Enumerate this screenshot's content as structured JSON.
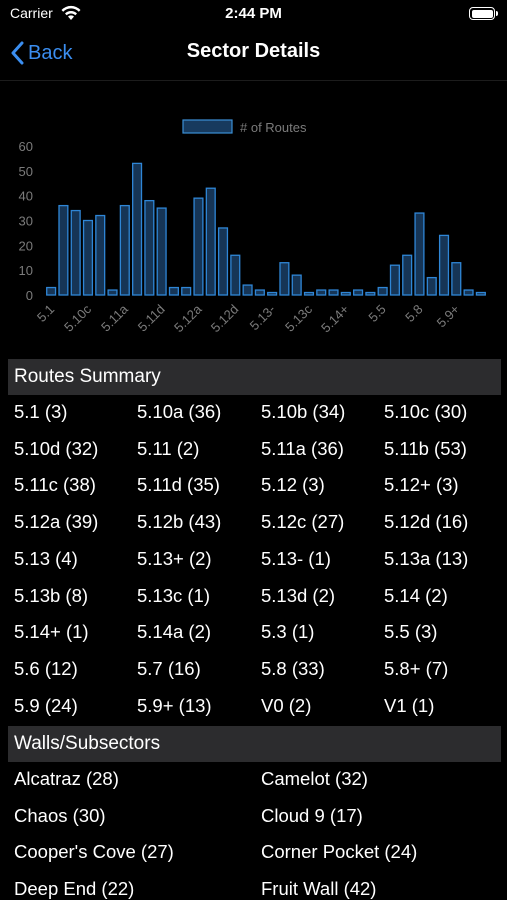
{
  "status_bar": {
    "carrier": "Carrier",
    "time": "2:44 PM"
  },
  "nav": {
    "back_label": "Back",
    "title": "Sector Details"
  },
  "chart_data": {
    "type": "bar",
    "legend": "# of Routes",
    "ylim": [
      0,
      60
    ],
    "yticks": [
      0,
      10,
      20,
      30,
      40,
      50,
      60
    ],
    "categories": [
      "5.1",
      "5.10a",
      "5.10b",
      "5.10c",
      "5.10d",
      "5.11",
      "5.11a",
      "5.11b",
      "5.11c",
      "5.11d",
      "5.12",
      "5.12+",
      "5.12a",
      "5.12b",
      "5.12c",
      "5.12d",
      "5.13",
      "5.13+",
      "5.13-",
      "5.13a",
      "5.13b",
      "5.13c",
      "5.13d",
      "5.14",
      "5.14+",
      "5.14a",
      "5.3",
      "5.5",
      "5.6",
      "5.7",
      "5.8",
      "5.8+",
      "5.9",
      "5.9+",
      "V0",
      "V1"
    ],
    "values": [
      3,
      36,
      34,
      30,
      32,
      2,
      36,
      53,
      38,
      35,
      3,
      3,
      39,
      43,
      27,
      16,
      4,
      2,
      1,
      13,
      8,
      1,
      2,
      2,
      1,
      2,
      1,
      3,
      12,
      16,
      33,
      7,
      24,
      13,
      2,
      1
    ],
    "tick_labels": [
      "5.1",
      "5.10c",
      "5.11a",
      "5.11d",
      "5.12a",
      "5.12d",
      "5.13-",
      "5.13c",
      "5.14+",
      "5.5",
      "5.8",
      "5.9+"
    ],
    "tick_indices": [
      0,
      3,
      6,
      9,
      12,
      15,
      18,
      21,
      24,
      27,
      30,
      33
    ],
    "grid": false
  },
  "routes_summary": {
    "header": "Routes Summary",
    "items": [
      "5.1 (3)",
      "5.10a (36)",
      "5.10b (34)",
      "5.10c (30)",
      "5.10d (32)",
      "5.11 (2)",
      "5.11a (36)",
      "5.11b (53)",
      "5.11c (38)",
      "5.11d (35)",
      "5.12 (3)",
      "5.12+ (3)",
      "5.12a (39)",
      "5.12b (43)",
      "5.12c (27)",
      "5.12d (16)",
      "5.13 (4)",
      "5.13+ (2)",
      "5.13- (1)",
      "5.13a (13)",
      "5.13b (8)",
      "5.13c (1)",
      "5.13d (2)",
      "5.14 (2)",
      "5.14+ (1)",
      "5.14a (2)",
      "5.3 (1)",
      "5.5 (3)",
      "5.6 (12)",
      "5.7 (16)",
      "5.8 (33)",
      "5.8+ (7)",
      "5.9 (24)",
      "5.9+ (13)",
      "V0 (2)",
      "V1 (1)"
    ]
  },
  "walls": {
    "header": "Walls/Subsectors",
    "items": [
      "Alcatraz (28)",
      "Camelot (32)",
      "Chaos (30)",
      "Cloud 9 (17)",
      "Cooper's Cove (27)",
      "Corner Pocket (24)",
      "Deep End (22)",
      "Fruit Wall (42)"
    ]
  }
}
